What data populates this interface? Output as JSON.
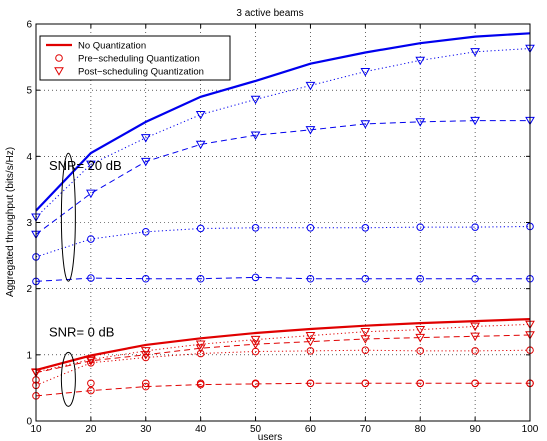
{
  "chart_data": {
    "type": "line",
    "title": "3 active beams",
    "xlabel": "users",
    "ylabel": "Aggregated throughput (bits/s/Hz)",
    "xlim": [
      10,
      100
    ],
    "ylim": [
      0,
      6
    ],
    "x": [
      10,
      20,
      30,
      40,
      50,
      60,
      70,
      80,
      90,
      100
    ],
    "x_ticks": [
      10,
      20,
      30,
      40,
      50,
      60,
      70,
      80,
      90,
      100
    ],
    "y_ticks": [
      0,
      1,
      2,
      3,
      4,
      5,
      6
    ],
    "grid": true,
    "legend_position": "top-left",
    "legend": [
      {
        "label": "No Quantization",
        "marker": "line",
        "color": "#e00000"
      },
      {
        "label": "Pre−scheduling Quantization",
        "marker": "circle",
        "color": "#e00000"
      },
      {
        "label": "Post−scheduling Quantization",
        "marker": "triangle-down",
        "color": "#e00000"
      }
    ],
    "annotations": [
      {
        "text": "SNR= 20 dB",
        "target_snr": "20 dB"
      },
      {
        "text": "SNR= 0 dB",
        "target_snr": "0 dB"
      }
    ],
    "series": [
      {
        "snr": "20 dB",
        "quantization": "none",
        "feedback": "full",
        "color": "#0000ee",
        "line": "solid",
        "marker": "none",
        "lw": 2.2,
        "values": [
          3.18,
          4.05,
          4.52,
          4.9,
          5.14,
          5.4,
          5.57,
          5.71,
          5.81,
          5.86
        ]
      },
      {
        "snr": "20 dB",
        "quantization": "post",
        "feedback": "full",
        "color": "#0000ee",
        "line": "dotted",
        "marker": "triangle-down",
        "lw": 1,
        "values": [
          3.08,
          3.88,
          4.28,
          4.63,
          4.86,
          5.07,
          5.28,
          5.45,
          5.58,
          5.63
        ]
      },
      {
        "snr": "20 dB",
        "quantization": "post",
        "feedback": "reduced",
        "color": "#0000ee",
        "line": "dashed",
        "marker": "triangle-down",
        "lw": 1,
        "values": [
          2.82,
          3.44,
          3.92,
          4.18,
          4.32,
          4.4,
          4.49,
          4.52,
          4.54,
          4.54
        ]
      },
      {
        "snr": "20 dB",
        "quantization": "pre",
        "feedback": "full",
        "color": "#0000ee",
        "line": "dotted",
        "marker": "circle",
        "lw": 1,
        "values": [
          2.48,
          2.75,
          2.86,
          2.91,
          2.92,
          2.92,
          2.92,
          2.93,
          2.93,
          2.94
        ]
      },
      {
        "snr": "20 dB",
        "quantization": "pre",
        "feedback": "reduced",
        "color": "#0000ee",
        "line": "dashed",
        "marker": "circle",
        "lw": 1,
        "values": [
          2.11,
          2.16,
          2.15,
          2.15,
          2.17,
          2.15,
          2.15,
          2.15,
          2.15,
          2.15
        ]
      },
      {
        "snr": "0 dB",
        "quantization": "none",
        "feedback": "full",
        "color": "#e00000",
        "line": "solid",
        "marker": "none",
        "lw": 2.2,
        "values": [
          0.77,
          0.99,
          1.15,
          1.25,
          1.33,
          1.39,
          1.44,
          1.48,
          1.51,
          1.54
        ]
      },
      {
        "snr": "0 dB",
        "quantization": "post",
        "feedback": "full",
        "color": "#e00000",
        "line": "dotted",
        "marker": "triangle-down",
        "lw": 1,
        "values": [
          0.74,
          0.93,
          1.06,
          1.16,
          1.23,
          1.29,
          1.35,
          1.38,
          1.43,
          1.46
        ]
      },
      {
        "snr": "0 dB",
        "quantization": "post",
        "feedback": "reduced",
        "color": "#e00000",
        "line": "dashed",
        "marker": "triangle-down",
        "lw": 1,
        "values": [
          0.73,
          0.91,
          1.0,
          1.1,
          1.16,
          1.2,
          1.24,
          1.26,
          1.28,
          1.3
        ]
      },
      {
        "snr": "0 dB",
        "quantization": "pre",
        "feedback": "full",
        "color": "#e00000",
        "line": "dotted",
        "marker": "circle",
        "lw": 1,
        "values": [
          0.54,
          0.88,
          0.96,
          1.02,
          1.05,
          1.06,
          1.07,
          1.06,
          1.06,
          1.07
        ]
      },
      {
        "snr": "0 dB",
        "quantization": "pre",
        "feedback": "reduced",
        "color": "#e00000",
        "line": "dashed",
        "marker": "circle",
        "lw": 1,
        "values": [
          0.38,
          0.46,
          0.52,
          0.55,
          0.56,
          0.57,
          0.57,
          0.57,
          0.57,
          0.57
        ]
      }
    ],
    "open_circle_markers": [
      {
        "snr": "0 dB",
        "x": [
          10,
          20,
          30,
          40,
          50,
          60,
          70,
          80,
          90,
          100
        ],
        "values": [
          0.62,
          0.57,
          0.57,
          0.57,
          0.57,
          0.57,
          0.57,
          0.57,
          0.57,
          0.57
        ]
      }
    ]
  }
}
